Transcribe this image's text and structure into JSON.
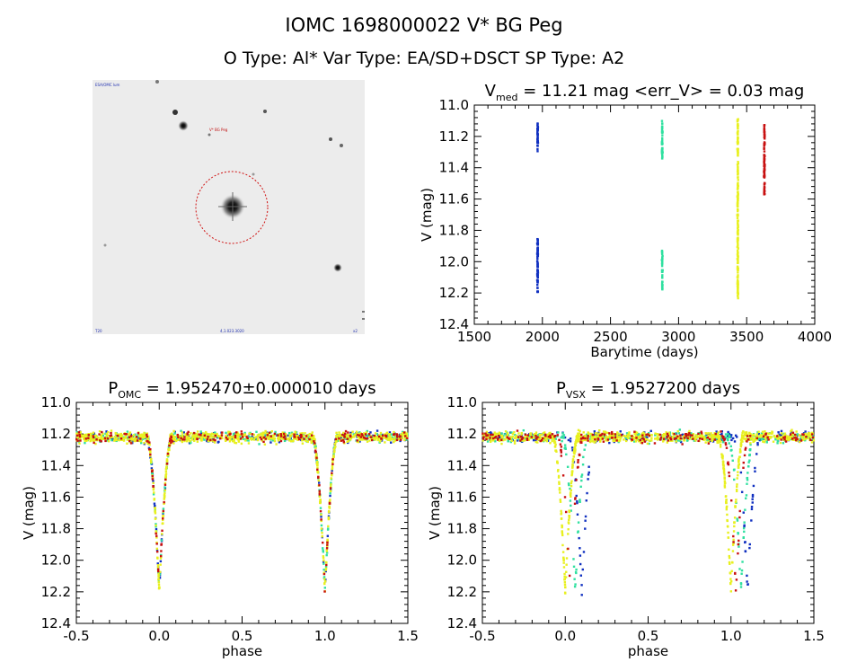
{
  "header": {
    "line1": "IOMC 1698000022    V* BG Peg",
    "line2": "O Type: Al*  Var Type: EA/SD+DSCT  SP Type: A2"
  },
  "colors": {
    "blue": "#1030c0",
    "green": "#30e0a0",
    "yellow": "#e8f020",
    "red": "#c81010",
    "circle": "#d01010",
    "star": "#101010"
  },
  "image_panel": {
    "label_top_left": "ESA/OMC lum",
    "label_star": "V* BG Peg",
    "label_bottom_left": "T20",
    "label_bottom_center": "4,1.023.3020",
    "label_bottom_right": "x2"
  },
  "chart_data": [
    {
      "type": "scatter",
      "id": "timeseries",
      "title_main": "V",
      "title_sub": "med",
      "title_rest": " = 11.21 mag <err_V> = 0.03 mag",
      "xlabel": "Barytime (days)",
      "ylabel": "V (mag)",
      "xlim": [
        1500,
        4000
      ],
      "ylim": [
        12.4,
        11.0
      ],
      "xticks": [
        1500,
        2000,
        2500,
        3000,
        3500,
        4000
      ],
      "yticks": [
        11.0,
        11.2,
        11.4,
        11.6,
        11.8,
        12.0,
        12.2,
        12.4
      ],
      "series": [
        {
          "color": "blue",
          "x": 1965,
          "segments": [
            [
              11.1,
              11.3
            ],
            [
              11.85,
              12.2
            ]
          ]
        },
        {
          "color": "green",
          "x": 2880,
          "segments": [
            [
              11.1,
              11.35
            ],
            [
              11.93,
              12.18
            ]
          ]
        },
        {
          "color": "yellow",
          "x": 3435,
          "segments": [
            [
              11.08,
              12.24
            ]
          ]
        },
        {
          "color": "red",
          "x": 3630,
          "segments": [
            [
              11.12,
              11.58
            ]
          ]
        }
      ]
    },
    {
      "type": "scatter",
      "id": "phase_omc",
      "title_main": "P",
      "title_sub": "OMC",
      "title_rest": " = 1.952470±0.000010 days",
      "xlabel": "phase",
      "ylabel": "V (mag)",
      "xlim": [
        -0.5,
        1.5
      ],
      "ylim": [
        12.4,
        11.0
      ],
      "xticks": [
        -0.5,
        0.0,
        0.5,
        1.0,
        1.5
      ],
      "yticks": [
        11.0,
        11.2,
        11.4,
        11.6,
        11.8,
        12.0,
        12.2,
        12.4
      ],
      "eclipse_centers": [
        0.0,
        1.0
      ],
      "eclipse_offsets": {
        "blue": 0.0,
        "green": 0.0,
        "yellow": 0.0,
        "red": 0.0
      },
      "baseline_mag": 11.22,
      "minimum_mag": 12.2
    },
    {
      "type": "scatter",
      "id": "phase_vsx",
      "title_main": "P",
      "title_sub": "VSX",
      "title_rest": " = 1.9527200 days",
      "xlabel": "phase",
      "ylabel": "V (mag)",
      "xlim": [
        -0.5,
        1.5
      ],
      "ylim": [
        12.4,
        11.0
      ],
      "xticks": [
        -0.5,
        0.0,
        0.5,
        1.0,
        1.5
      ],
      "yticks": [
        11.0,
        11.2,
        11.4,
        11.6,
        11.8,
        12.0,
        12.2,
        12.4
      ],
      "eclipse_centers": [
        0.0,
        1.0
      ],
      "eclipse_offsets": {
        "blue": 0.1,
        "green": 0.06,
        "yellow": 0.0,
        "red": 0.03
      },
      "baseline_mag": 11.22,
      "minimum_mag": 12.2
    }
  ]
}
